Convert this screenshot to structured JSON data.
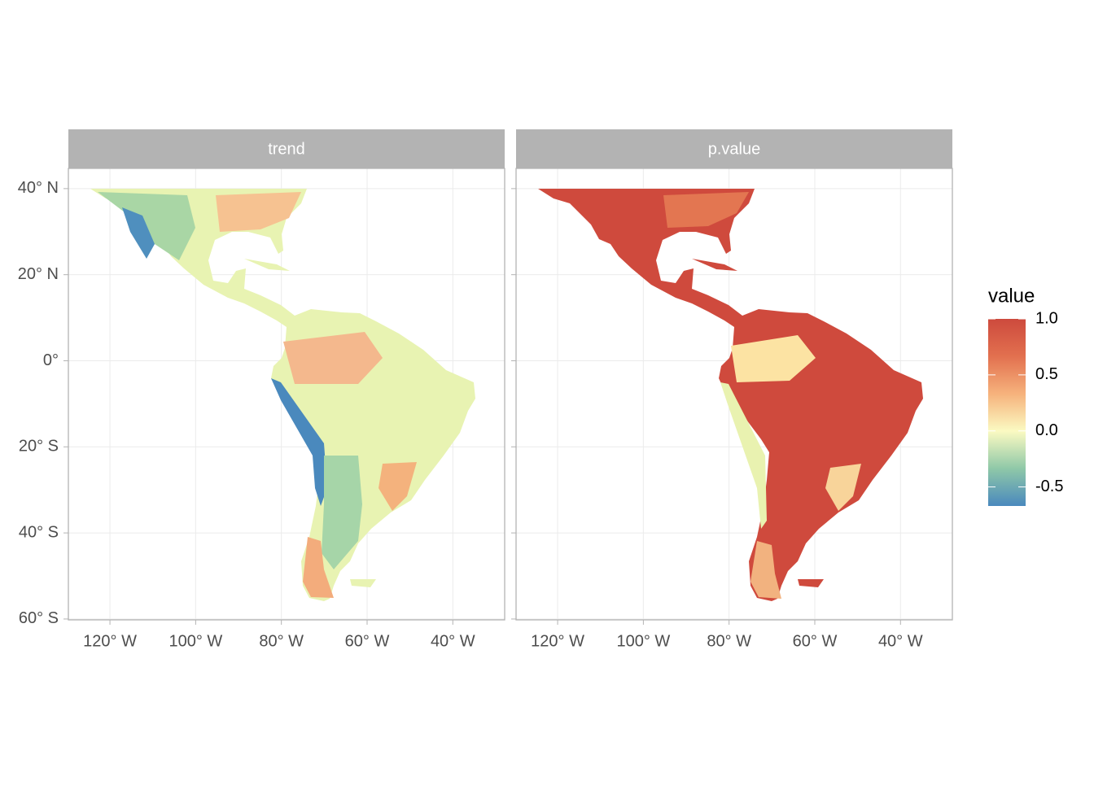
{
  "panels": [
    {
      "title": "trend"
    },
    {
      "title": "p.value"
    }
  ],
  "x_axis": {
    "lim": [
      -129.7,
      -27.9
    ],
    "ticks": [
      {
        "value": -120,
        "label": "120° W"
      },
      {
        "value": -100,
        "label": "100° W"
      },
      {
        "value": -80,
        "label": "80° W"
      },
      {
        "value": -60,
        "label": "60° W"
      },
      {
        "value": -40,
        "label": "40° W"
      }
    ]
  },
  "y_axis": {
    "lim": [
      -60.2,
      44.7
    ],
    "ticks": [
      {
        "value": 40,
        "label": "40° N"
      },
      {
        "value": 20,
        "label": "20° N"
      },
      {
        "value": 0,
        "label": "0°"
      },
      {
        "value": -20,
        "label": "20° S"
      },
      {
        "value": -40,
        "label": "40° S"
      },
      {
        "value": -60,
        "label": "60° S"
      }
    ]
  },
  "legend": {
    "title": "value",
    "lim": [
      -0.67,
      1.0
    ],
    "ticks": [
      {
        "value": 1,
        "label": "1.0"
      },
      {
        "value": 0.5,
        "label": "0.5"
      },
      {
        "value": 0,
        "label": "0.0"
      },
      {
        "value": -0.5,
        "label": "-0.5"
      }
    ],
    "colors": [
      "#4a89bd",
      "#8fc8a8",
      "#fbfac2",
      "#f6b27c",
      "#e2704f",
      "#cd4a3d"
    ]
  }
}
